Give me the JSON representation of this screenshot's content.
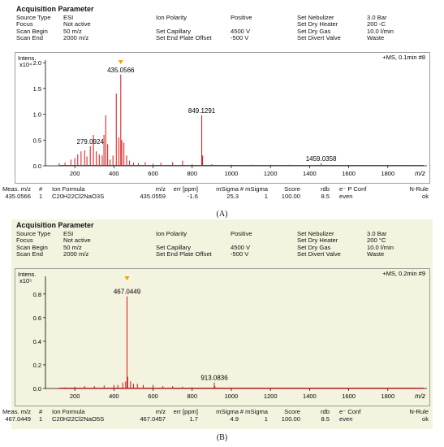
{
  "panels": [
    {
      "label": "(A)",
      "title": "Acquisition Parameter",
      "params": [
        [
          "Source Type",
          "ESI",
          "Ion Polarity",
          "Positive",
          "Set Nebulizer",
          "3.0 Bar"
        ],
        [
          "Focus",
          "Not active",
          "",
          "",
          "Set Dry Heater",
          "200 ◦C"
        ],
        [
          "Scan Begin",
          "50 m/z",
          "Set Capillary",
          "4500 V",
          "Set Dry Gas",
          "10.0 l/min"
        ],
        [
          "Scan End",
          "2000 m/z",
          "Set End Plate Offset",
          "-500 V",
          "Set Divert Valve",
          "Waste"
        ]
      ],
      "table_header": [
        "Meas. m/z",
        "#",
        "Ion Formula",
        "m/z",
        "err [ppm]",
        "mSigma",
        "# mSigma",
        "Score",
        "rdb",
        "e⁻ P Conf",
        "N-Rule"
      ],
      "table_row": [
        "435.0566",
        "1",
        "C20H22Cl2NaO3S",
        "435.0559",
        "-1.6",
        "25.3",
        "1",
        "100.00",
        "8.5",
        "even",
        "ok"
      ],
      "colors": {
        "background": "#ffffff",
        "trace": "#e01010",
        "marker": "#f0a000"
      }
    },
    {
      "label": "(B)",
      "title": "Acquisition Parameter",
      "params": [
        [
          "Source Type",
          "ESI",
          "Ion Polarity",
          "Positive",
          "Set Nebulizer",
          "3.0 Bar"
        ],
        [
          "Focus",
          "Not active",
          "",
          "",
          "Set Dry Heater",
          "200 °C"
        ],
        [
          "Scan Begin",
          "50 m/z",
          "Set Capillary",
          "4500 V",
          "Set Dry Gas",
          "10.0 l/min"
        ],
        [
          "Scan End",
          "2000 m/z",
          "Set End Plate Offset",
          "-500 V",
          "Set Divert Valve",
          "Waste"
        ]
      ],
      "table_header": [
        "Meas. m/z",
        "#",
        "Ion Formula",
        "m/z",
        "err [ppm]",
        "mSigma",
        "# mSigma",
        "Score",
        "rdb",
        "e⁻ Conf",
        "N-Rule"
      ],
      "table_row": [
        "467.0449",
        "1",
        "C20H22Cl2NaO5S",
        "467.0457",
        "1.7",
        "4.9",
        "1",
        "100.00",
        "8.5",
        "even",
        "ok"
      ],
      "colors": {
        "background": "#f3f3df",
        "trace": "#e01010",
        "marker": "#f0a000"
      }
    }
  ],
  "chart_data": [
    {
      "type": "line",
      "title": "",
      "ylabel": "Intens.",
      "yexp": "x10⁴",
      "xlabel": "m/z",
      "scan_label": "+MS, 0.1min #8",
      "xlim": [
        50,
        2000
      ],
      "ylim": [
        0,
        2.05
      ],
      "xticks": [
        200,
        400,
        600,
        800,
        1000,
        1200,
        1400,
        1600,
        1800
      ],
      "yticks": [
        0.0,
        0.5,
        1.0,
        1.5,
        2.0
      ],
      "peaks": [
        [
          120,
          0.05
        ],
        [
          150,
          0.06
        ],
        [
          180,
          0.12
        ],
        [
          200,
          0.15
        ],
        [
          215,
          0.22
        ],
        [
          232,
          0.28
        ],
        [
          250,
          0.3
        ],
        [
          262,
          0.18
        ],
        [
          279,
          0.38
        ],
        [
          295,
          0.6
        ],
        [
          310,
          0.28
        ],
        [
          325,
          0.22
        ],
        [
          340,
          0.2
        ],
        [
          349,
          0.6
        ],
        [
          358,
          0.98
        ],
        [
          368,
          0.42
        ],
        [
          380,
          0.12
        ],
        [
          395,
          0.2
        ],
        [
          412,
          1.4
        ],
        [
          425,
          0.55
        ],
        [
          435,
          1.77
        ],
        [
          440,
          0.5
        ],
        [
          451,
          0.45
        ],
        [
          465,
          0.2
        ],
        [
          480,
          0.1
        ],
        [
          500,
          0.06
        ],
        [
          525,
          0.05
        ],
        [
          560,
          0.07
        ],
        [
          600,
          0.04
        ],
        [
          640,
          0.06
        ],
        [
          700,
          0.07
        ],
        [
          751,
          0.1
        ],
        [
          800,
          0.03
        ],
        [
          849,
          0.98
        ],
        [
          853,
          0.2
        ],
        [
          900,
          0.03
        ],
        [
          1000,
          0.02
        ],
        [
          1100,
          0.02
        ],
        [
          1200,
          0.02
        ],
        [
          1300,
          0.02
        ],
        [
          1459,
          0.05
        ]
      ],
      "labels": [
        {
          "x": 435,
          "y": 1.77,
          "text": "435.0566"
        },
        {
          "x": 279,
          "y": 0.38,
          "text": "279.0924"
        },
        {
          "x": 849,
          "y": 0.98,
          "text": "849.1291"
        },
        {
          "x": 1459,
          "y": 0.05,
          "text": "1459.0358"
        }
      ],
      "marker_x": 435
    },
    {
      "type": "line",
      "title": "",
      "ylabel": "Intens.",
      "yexp": "x10⁵",
      "xlabel": "m/z",
      "scan_label": "+MS, 0.2min #9",
      "xlim": [
        50,
        2000
      ],
      "ylim": [
        0,
        0.95
      ],
      "xticks": [
        200,
        400,
        600,
        800,
        1000,
        1200,
        1400,
        1600,
        1800
      ],
      "yticks": [
        0.0,
        0.2,
        0.4,
        0.6,
        0.8
      ],
      "peaks": [
        [
          150,
          0.01
        ],
        [
          200,
          0.015
        ],
        [
          250,
          0.02
        ],
        [
          300,
          0.02
        ],
        [
          350,
          0.025
        ],
        [
          400,
          0.03
        ],
        [
          420,
          0.03
        ],
        [
          445,
          0.05
        ],
        [
          460,
          0.06
        ],
        [
          467,
          0.78
        ],
        [
          470,
          0.1
        ],
        [
          485,
          0.06
        ],
        [
          500,
          0.04
        ],
        [
          520,
          0.04
        ],
        [
          550,
          0.03
        ],
        [
          600,
          0.03
        ],
        [
          650,
          0.02
        ],
        [
          700,
          0.02
        ],
        [
          750,
          0.015
        ],
        [
          800,
          0.01
        ],
        [
          913,
          0.05
        ],
        [
          916,
          0.02
        ],
        [
          1000,
          0.005
        ],
        [
          1200,
          0.004
        ]
      ],
      "labels": [
        {
          "x": 467,
          "y": 0.78,
          "text": "467.0449"
        },
        {
          "x": 913,
          "y": 0.05,
          "text": "913.0836"
        }
      ],
      "marker_x": 467
    }
  ]
}
